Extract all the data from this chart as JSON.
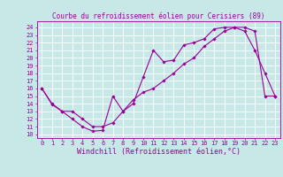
{
  "title": "Courbe du refroidissement éolien pour Cerisiers (89)",
  "xlabel": "Windchill (Refroidissement éolien,°C)",
  "xlim": [
    -0.5,
    23.5
  ],
  "ylim": [
    9.5,
    24.8
  ],
  "yticks": [
    10,
    11,
    12,
    13,
    14,
    15,
    16,
    17,
    18,
    19,
    20,
    21,
    22,
    23,
    24
  ],
  "xticks": [
    0,
    1,
    2,
    3,
    4,
    5,
    6,
    7,
    8,
    9,
    10,
    11,
    12,
    13,
    14,
    15,
    16,
    17,
    18,
    19,
    20,
    21,
    22,
    23
  ],
  "line1_x": [
    0,
    1,
    2,
    3,
    4,
    5,
    6,
    7,
    8,
    9,
    10,
    11,
    12,
    13,
    14,
    15,
    16,
    17,
    18,
    19,
    20,
    21,
    22,
    23
  ],
  "line1_y": [
    16.0,
    13.9,
    13.0,
    12.0,
    11.0,
    10.4,
    10.5,
    15.0,
    13.0,
    14.0,
    17.5,
    21.0,
    19.5,
    19.7,
    21.7,
    22.0,
    22.5,
    23.8,
    24.0,
    24.0,
    23.5,
    21.0,
    18.0,
    15.0
  ],
  "line2_x": [
    0,
    1,
    2,
    3,
    4,
    5,
    6,
    7,
    8,
    9,
    10,
    11,
    12,
    13,
    14,
    15,
    16,
    17,
    18,
    19,
    20,
    21,
    22,
    23
  ],
  "line2_y": [
    16.0,
    14.0,
    13.0,
    13.0,
    12.0,
    11.0,
    11.0,
    11.5,
    13.0,
    14.5,
    15.5,
    16.0,
    17.0,
    18.0,
    19.2,
    20.0,
    21.5,
    22.5,
    23.5,
    24.0,
    24.0,
    23.5,
    15.0,
    15.0
  ],
  "line_color": "#990099",
  "marker": "D",
  "marker_size": 1.8,
  "bg_color": "#c8e8e8",
  "grid_color": "#ffffff",
  "line_width": 0.8,
  "tick_fontsize": 5.0,
  "xlabel_fontsize": 6.0,
  "title_fontsize": 5.5
}
